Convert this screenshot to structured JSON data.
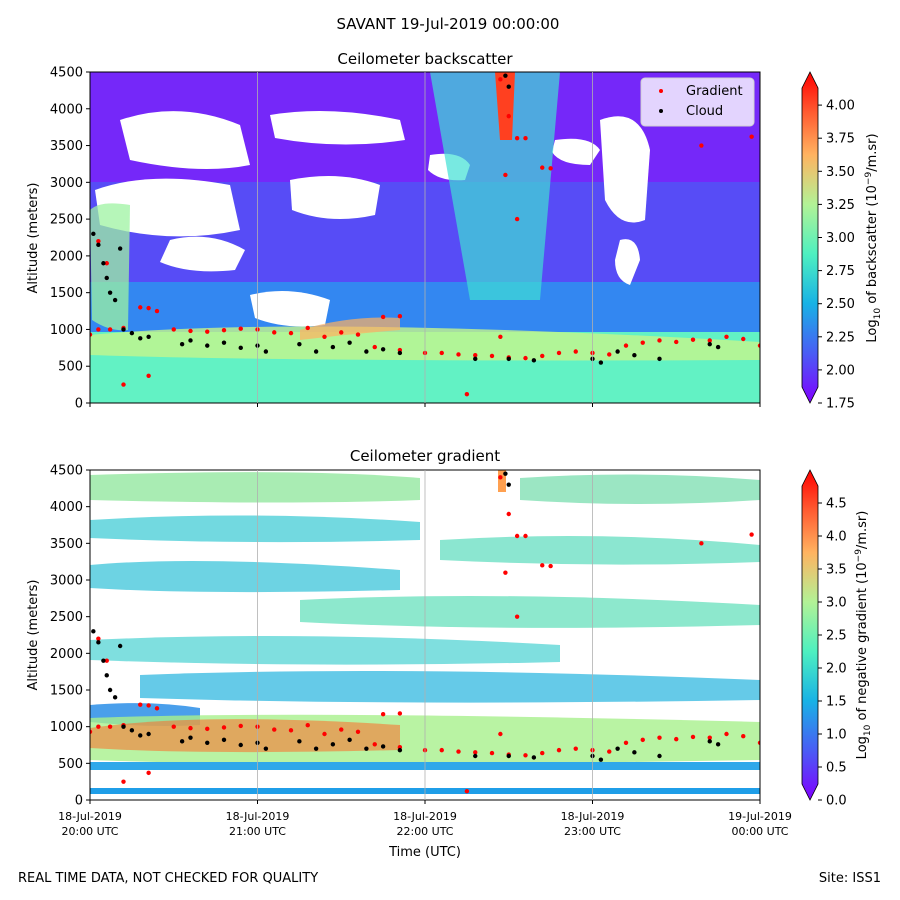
{
  "suptitle": "SAVANT 19-Jul-2019 00:00:00",
  "footer": {
    "left": "REAL TIME DATA, NOT CHECKED FOR QUALITY",
    "right": "Site: ISS1"
  },
  "colors": {
    "cloud": "#000000",
    "gradient": "#ff0000"
  },
  "chart_data": [
    {
      "type": "heatmap",
      "title": "Ceilometer backscatter",
      "ylabel": "Altitude (meters)",
      "xlabel": "",
      "ylim": [
        0,
        4500
      ],
      "yticks": [
        0,
        500,
        1000,
        1500,
        2000,
        2500,
        3000,
        3500,
        4000,
        4500
      ],
      "xlim_hours": [
        20,
        24
      ],
      "xticks_hours": [
        20,
        21,
        22,
        23,
        24
      ],
      "grid": true,
      "legend": {
        "position": "top-right",
        "entries": [
          {
            "label": "Gradient",
            "color": "#ff0000"
          },
          {
            "label": "Cloud",
            "color": "#000000"
          }
        ]
      },
      "colorbar": {
        "label_prefix": "Log",
        "label_sub": "10",
        "label_mid": " of backscatter (10",
        "label_sup": "−9",
        "label_suffix": "/m.sr)",
        "range": [
          1.75,
          4.25
        ],
        "ticks": [
          "1.75",
          "2.00",
          "2.25",
          "2.50",
          "2.75",
          "3.00",
          "3.25",
          "3.50",
          "3.75",
          "4.00"
        ]
      },
      "series": [
        {
          "name": "Gradient",
          "points": [
            [
              20.0,
              930
            ],
            [
              20.05,
              1000
            ],
            [
              20.12,
              1000
            ],
            [
              20.2,
              1020
            ],
            [
              20.3,
              1300
            ],
            [
              20.35,
              1290
            ],
            [
              20.4,
              1250
            ],
            [
              20.5,
              1000
            ],
            [
              20.6,
              980
            ],
            [
              20.7,
              970
            ],
            [
              20.8,
              990
            ],
            [
              20.9,
              1010
            ],
            [
              21.0,
              1000
            ],
            [
              21.1,
              960
            ],
            [
              21.2,
              950
            ],
            [
              21.3,
              1020
            ],
            [
              21.4,
              900
            ],
            [
              21.5,
              960
            ],
            [
              21.6,
              930
            ],
            [
              21.75,
              1170
            ],
            [
              21.85,
              1180
            ],
            [
              21.7,
              760
            ],
            [
              21.85,
              720
            ],
            [
              22.0,
              680
            ],
            [
              22.1,
              680
            ],
            [
              22.2,
              660
            ],
            [
              22.3,
              650
            ],
            [
              22.4,
              640
            ],
            [
              22.5,
              620
            ],
            [
              22.6,
              610
            ],
            [
              22.7,
              640
            ],
            [
              22.8,
              680
            ],
            [
              22.9,
              700
            ],
            [
              23.0,
              680
            ],
            [
              23.1,
              660
            ],
            [
              23.2,
              780
            ],
            [
              23.3,
              820
            ],
            [
              23.4,
              850
            ],
            [
              23.5,
              830
            ],
            [
              23.6,
              860
            ],
            [
              23.7,
              850
            ],
            [
              23.8,
              900
            ],
            [
              23.9,
              870
            ],
            [
              24.0,
              780
            ],
            [
              20.2,
              250
            ],
            [
              20.35,
              370
            ],
            [
              22.25,
              120
            ],
            [
              20.05,
              2200
            ],
            [
              20.1,
              1900
            ],
            [
              22.45,
              4400
            ],
            [
              22.5,
              3900
            ],
            [
              22.55,
              3600
            ],
            [
              22.6,
              3600
            ],
            [
              22.7,
              3200
            ],
            [
              22.75,
              3190
            ],
            [
              22.55,
              2500
            ],
            [
              22.45,
              900
            ],
            [
              23.65,
              3500
            ],
            [
              23.95,
              3620
            ],
            [
              22.48,
              3100
            ]
          ]
        },
        {
          "name": "Cloud",
          "points": [
            [
              20.02,
              2300
            ],
            [
              20.05,
              2150
            ],
            [
              20.08,
              1900
            ],
            [
              20.1,
              1700
            ],
            [
              20.12,
              1500
            ],
            [
              20.15,
              1400
            ],
            [
              20.18,
              2100
            ],
            [
              20.2,
              1000
            ],
            [
              20.25,
              950
            ],
            [
              20.3,
              880
            ],
            [
              20.35,
              900
            ],
            [
              20.55,
              800
            ],
            [
              20.6,
              850
            ],
            [
              20.7,
              780
            ],
            [
              20.8,
              820
            ],
            [
              20.9,
              750
            ],
            [
              21.0,
              780
            ],
            [
              21.05,
              700
            ],
            [
              21.25,
              800
            ],
            [
              21.35,
              700
            ],
            [
              21.45,
              760
            ],
            [
              21.55,
              820
            ],
            [
              21.65,
              700
            ],
            [
              21.75,
              730
            ],
            [
              21.85,
              680
            ],
            [
              22.3,
              600
            ],
            [
              22.5,
              600
            ],
            [
              22.65,
              580
            ],
            [
              23.0,
              600
            ],
            [
              23.05,
              550
            ],
            [
              23.15,
              700
            ],
            [
              23.25,
              650
            ],
            [
              23.4,
              600
            ],
            [
              23.7,
              800
            ],
            [
              23.75,
              760
            ],
            [
              22.48,
              4450
            ],
            [
              22.5,
              4300
            ]
          ]
        }
      ]
    },
    {
      "type": "heatmap",
      "title": "Ceilometer gradient",
      "ylabel": "Altitude (meters)",
      "xlabel": "Time (UTC)",
      "ylim": [
        0,
        4500
      ],
      "yticks": [
        0,
        500,
        1000,
        1500,
        2000,
        2500,
        3000,
        3500,
        4000,
        4500
      ],
      "xlim_hours": [
        20,
        24
      ],
      "xticks_hours": [
        20,
        21,
        22,
        23,
        24
      ],
      "xtick_labels": [
        [
          "18-Jul-2019",
          "20:00 UTC"
        ],
        [
          "18-Jul-2019",
          "21:00 UTC"
        ],
        [
          "18-Jul-2019",
          "22:00 UTC"
        ],
        [
          "18-Jul-2019",
          "23:00 UTC"
        ],
        [
          "19-Jul-2019",
          "00:00 UTC"
        ]
      ],
      "grid": true,
      "colorbar": {
        "label_prefix": "Log",
        "label_sub": "10",
        "label_mid": " of negative gradient (10",
        "label_sup": "−9",
        "label_suffix": "/m.sr)",
        "range": [
          0.0,
          5.0
        ],
        "ticks": [
          "0.0",
          "0.5",
          "1.0",
          "1.5",
          "2.0",
          "2.5",
          "3.0",
          "3.5",
          "4.0",
          "4.5"
        ]
      },
      "series": [
        {
          "name": "Gradient",
          "points": [
            [
              20.0,
              930
            ],
            [
              20.05,
              1000
            ],
            [
              20.12,
              1000
            ],
            [
              20.2,
              1020
            ],
            [
              20.3,
              1300
            ],
            [
              20.35,
              1290
            ],
            [
              20.4,
              1250
            ],
            [
              20.5,
              1000
            ],
            [
              20.6,
              980
            ],
            [
              20.7,
              970
            ],
            [
              20.8,
              990
            ],
            [
              20.9,
              1010
            ],
            [
              21.0,
              1000
            ],
            [
              21.1,
              960
            ],
            [
              21.2,
              950
            ],
            [
              21.3,
              1020
            ],
            [
              21.4,
              900
            ],
            [
              21.5,
              960
            ],
            [
              21.6,
              930
            ],
            [
              21.75,
              1170
            ],
            [
              21.85,
              1180
            ],
            [
              21.7,
              760
            ],
            [
              21.85,
              720
            ],
            [
              22.0,
              680
            ],
            [
              22.1,
              680
            ],
            [
              22.2,
              660
            ],
            [
              22.3,
              650
            ],
            [
              22.4,
              640
            ],
            [
              22.5,
              620
            ],
            [
              22.6,
              610
            ],
            [
              22.7,
              640
            ],
            [
              22.8,
              680
            ],
            [
              22.9,
              700
            ],
            [
              23.0,
              680
            ],
            [
              23.1,
              660
            ],
            [
              23.2,
              780
            ],
            [
              23.3,
              820
            ],
            [
              23.4,
              850
            ],
            [
              23.5,
              830
            ],
            [
              23.6,
              860
            ],
            [
              23.7,
              850
            ],
            [
              23.8,
              900
            ],
            [
              23.9,
              870
            ],
            [
              24.0,
              780
            ],
            [
              20.2,
              250
            ],
            [
              20.35,
              370
            ],
            [
              22.25,
              120
            ],
            [
              20.05,
              2200
            ],
            [
              20.1,
              1900
            ],
            [
              22.45,
              4400
            ],
            [
              22.5,
              3900
            ],
            [
              22.55,
              3600
            ],
            [
              22.6,
              3600
            ],
            [
              22.7,
              3200
            ],
            [
              22.75,
              3190
            ],
            [
              22.55,
              2500
            ],
            [
              22.45,
              900
            ],
            [
              23.65,
              3500
            ],
            [
              23.95,
              3620
            ],
            [
              22.48,
              3100
            ]
          ]
        },
        {
          "name": "Cloud",
          "points": [
            [
              20.02,
              2300
            ],
            [
              20.05,
              2150
            ],
            [
              20.08,
              1900
            ],
            [
              20.1,
              1700
            ],
            [
              20.12,
              1500
            ],
            [
              20.15,
              1400
            ],
            [
              20.18,
              2100
            ],
            [
              20.2,
              1000
            ],
            [
              20.25,
              950
            ],
            [
              20.3,
              880
            ],
            [
              20.35,
              900
            ],
            [
              20.55,
              800
            ],
            [
              20.6,
              850
            ],
            [
              20.7,
              780
            ],
            [
              20.8,
              820
            ],
            [
              20.9,
              750
            ],
            [
              21.0,
              780
            ],
            [
              21.05,
              700
            ],
            [
              21.25,
              800
            ],
            [
              21.35,
              700
            ],
            [
              21.45,
              760
            ],
            [
              21.55,
              820
            ],
            [
              21.65,
              700
            ],
            [
              21.75,
              730
            ],
            [
              21.85,
              680
            ],
            [
              22.3,
              600
            ],
            [
              22.5,
              600
            ],
            [
              22.65,
              580
            ],
            [
              23.0,
              600
            ],
            [
              23.05,
              550
            ],
            [
              23.15,
              700
            ],
            [
              23.25,
              650
            ],
            [
              23.4,
              600
            ],
            [
              23.7,
              800
            ],
            [
              23.75,
              760
            ],
            [
              22.48,
              4450
            ],
            [
              22.5,
              4300
            ]
          ]
        }
      ]
    }
  ]
}
